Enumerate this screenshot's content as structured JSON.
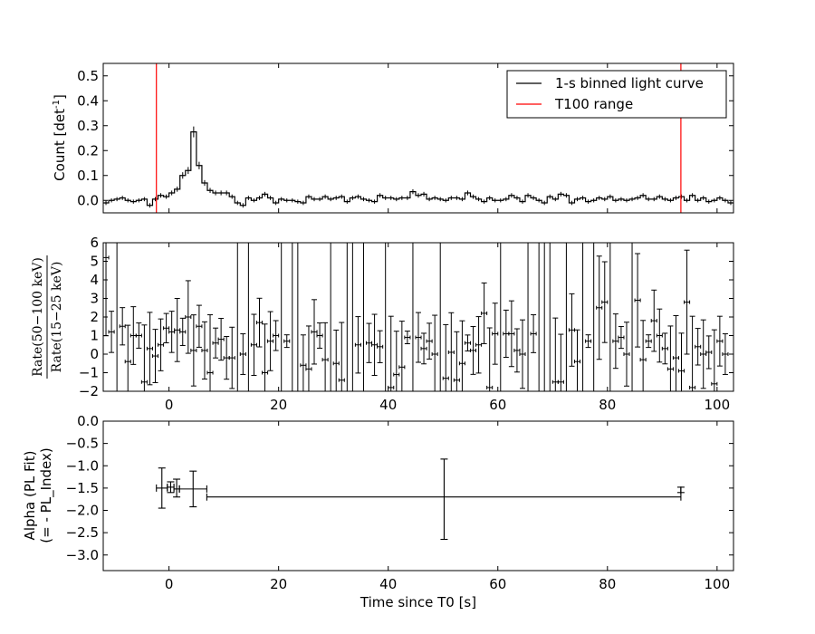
{
  "chart_data": [
    {
      "type": "line",
      "panel": "top",
      "xlim": [
        -12,
        103
      ],
      "ylim": [
        -0.05,
        0.55
      ],
      "yticks": [
        0.0,
        0.1,
        0.2,
        0.3,
        0.4,
        0.5
      ],
      "ytick_labels": [
        "0.0",
        "0.1",
        "0.2",
        "0.3",
        "0.4",
        "0.5"
      ],
      "xticks": [
        0,
        20,
        40,
        60,
        80,
        100
      ],
      "ylabel": "Count [det",
      "ylabel_sup": "-1",
      "ylabel_end": "]",
      "legend": {
        "placement": "top-right",
        "entries": [
          {
            "label": "1-s binned light curve",
            "color": "#000000"
          },
          {
            "label": "T100 range",
            "color": "#ff0000"
          }
        ]
      },
      "vlines": [
        -2.3,
        93.4
      ],
      "series": [
        {
          "name": "1-s binned light curve",
          "x_start": -12,
          "step": 1,
          "values": [
            -0.01,
            0.0,
            0.005,
            0.01,
            0.0,
            -0.005,
            0.0,
            0.005,
            -0.02,
            0.005,
            0.02,
            0.015,
            0.03,
            0.045,
            0.1,
            0.12,
            0.275,
            0.14,
            0.07,
            0.04,
            0.03,
            0.03,
            0.03,
            0.015,
            -0.01,
            -0.02,
            0.01,
            0.0,
            0.01,
            0.025,
            0.01,
            -0.01,
            0.005,
            0.0,
            0.0,
            -0.005,
            -0.01,
            0.015,
            0.005,
            0.005,
            0.015,
            0.005,
            0.01,
            0.015,
            -0.005,
            0.01,
            0.015,
            0.005,
            0.0,
            -0.005,
            0.02,
            0.01,
            0.01,
            0.005,
            0.01,
            0.01,
            0.035,
            0.02,
            0.025,
            0.005,
            0.01,
            0.005,
            0.0,
            0.01,
            0.01,
            0.005,
            0.03,
            0.015,
            0.005,
            -0.005,
            0.01,
            0.0,
            0.0,
            0.005,
            0.02,
            0.01,
            -0.005,
            0.02,
            0.01,
            0.0,
            -0.01,
            0.015,
            0.005,
            0.025,
            0.02,
            -0.01,
            0.005,
            0.01,
            -0.005,
            0.0,
            0.01,
            0.005,
            0.015,
            0.0,
            0.005,
            0.0,
            0.005,
            0.01,
            0.02,
            0.005,
            0.005,
            0.015,
            0.005,
            0.0,
            0.01,
            0.015,
            0.0,
            0.02,
            0.0,
            0.01,
            -0.005,
            0.0,
            0.01,
            0.0,
            -0.01
          ]
        }
      ]
    },
    {
      "type": "scatter",
      "panel": "middle",
      "xlim": [
        -12,
        103
      ],
      "ylim": [
        -2,
        6
      ],
      "yticks": [
        -2,
        -1,
        0,
        1,
        2,
        3,
        4,
        5,
        6
      ],
      "ytick_labels": [
        "−2",
        "−1",
        "0",
        "1",
        "2",
        "3",
        "4",
        "5",
        "6"
      ],
      "xticks": [
        0,
        20,
        40,
        60,
        80,
        100
      ],
      "xtick_labels": [
        "0",
        "20",
        "40",
        "60",
        "80",
        "100"
      ],
      "ylabel_num": "Rate(50−100 keV)",
      "ylabel_den": "Rate(15−25 keV)",
      "series": [
        {
          "name": "",
          "x_start": -11.5,
          "step": 1,
          "values": [
            5.2,
            1.2,
            6,
            1.5,
            -0.4,
            1.0,
            1.0,
            -1.5,
            0.3,
            -0.1,
            0.5,
            1.4,
            1.2,
            1.3,
            1.2,
            2.0,
            0.2,
            1.5,
            0.2,
            -1.0,
            0.6,
            0.8,
            -0.2,
            -0.2,
            -2,
            0.0,
            6,
            0.5,
            1.7,
            -1.0,
            0.7,
            1.0,
            -2,
            0.7,
            6,
            -2,
            -0.6,
            -0.8,
            1.2,
            1.0,
            -0.3,
            6,
            -0.5,
            -1.4,
            6,
            6,
            0.5,
            -2,
            0.6,
            0.5,
            0.4,
            6,
            -1.8,
            -1.1,
            -0.7,
            0.9,
            6,
            0.9,
            0.3,
            0.7,
            0.0,
            -2,
            -1.3,
            0.1,
            -1.4,
            -0.5,
            0.6,
            0.2,
            0.5,
            2.2,
            -1.8,
            1.1,
            -2,
            1.1,
            1.1,
            0.2,
            0.0,
            -2,
            1.1,
            -2,
            -2,
            6,
            -1.5,
            -1.5,
            -2,
            1.3,
            -0.4,
            -2,
            0.7,
            -2,
            2.5,
            2.8,
            -2,
            0.7,
            0.9,
            0.0,
            -2,
            2.9,
            -0.3,
            0.7,
            1.8,
            1.0,
            0.3,
            -0.8,
            -0.2,
            -0.9,
            2.8,
            -1.8,
            0.4,
            0.0,
            0.1,
            -1.6,
            0.7,
            0.0
          ]
        }
      ]
    },
    {
      "type": "scatter",
      "panel": "bottom",
      "xlim": [
        -12,
        103
      ],
      "ylim": [
        -3.35,
        0.0
      ],
      "yticks": [
        0.0,
        -0.5,
        -1.0,
        -1.5,
        -2.0,
        -2.5,
        -3.0
      ],
      "ytick_labels": [
        "0.0",
        "−0.5",
        "−1.0",
        "−1.5",
        "−2.0",
        "−2.5",
        "−3.0"
      ],
      "xticks": [
        0,
        20,
        40,
        60,
        80,
        100
      ],
      "xtick_labels": [
        "0",
        "20",
        "40",
        "60",
        "80",
        "100"
      ],
      "ylabel_line1": "Alpha (PL Fit)",
      "ylabel_line2": "(= - PL_Index)",
      "xlabel": "Time since T0 [s]",
      "series": [
        {
          "name": "",
          "points": [
            {
              "x": -1.3,
              "xlo": -2.3,
              "xhi": -0.3,
              "y": -1.5,
              "ylo": -1.95,
              "yhi": -1.05
            },
            {
              "x": 0.3,
              "xlo": -0.3,
              "xhi": 0.9,
              "y": -1.48,
              "ylo": -1.6,
              "yhi": -1.36
            },
            {
              "x": 1.4,
              "xlo": 0.9,
              "xhi": 1.9,
              "y": -1.52,
              "ylo": -1.7,
              "yhi": -1.3
            },
            {
              "x": 4.4,
              "xlo": 1.9,
              "xhi": 6.9,
              "y": -1.52,
              "ylo": -1.92,
              "yhi": -1.12
            },
            {
              "x": 50.2,
              "xlo": 6.9,
              "xhi": 93.4,
              "y": -1.7,
              "ylo": -2.65,
              "yhi": -0.85
            },
            {
              "x": 93.4,
              "xlo": 93.4,
              "xhi": 93.4,
              "y": -1.55,
              "ylo": -1.6,
              "yhi": -1.48
            }
          ]
        }
      ]
    }
  ]
}
